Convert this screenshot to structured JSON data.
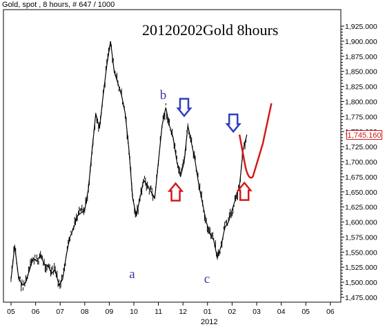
{
  "header": "Gold, spot , 8 hours, # 647 / 1000",
  "chart_title": "20120202Gold 8hours",
  "last_price_label": "1,745.160",
  "x_axis_year": "2012",
  "colors": {
    "price": "#000000",
    "annotation_blue": "#2f3fbf",
    "annotation_red": "#d41a1a",
    "wave_label": "#3a3aa8",
    "axis": "#000000"
  },
  "chart_data": {
    "type": "line",
    "title": "20120202Gold 8hours",
    "xlabel": "2012",
    "ylabel": "",
    "x_ticks": [
      "05",
      "06",
      "07",
      "08",
      "09",
      "10",
      "11",
      "12",
      "01",
      "02",
      "03",
      "04",
      "05",
      "06"
    ],
    "y_ticks": [
      "1,475.000",
      "1,500.000",
      "1,525.000",
      "1,550.000",
      "1,575.000",
      "1,600.000",
      "1,625.000",
      "1,650.000",
      "1,675.000",
      "1,700.000",
      "1,725.000",
      "1,750.000",
      "1,775.000",
      "1,800.000",
      "1,825.000",
      "1,850.000",
      "1,875.000",
      "1,900.000",
      "1,925.000"
    ],
    "ylim": [
      1475,
      1925
    ],
    "xlim": [
      0.0,
      14.0
    ],
    "series": [
      {
        "x": [
          0.0,
          0.15,
          0.3,
          0.45,
          0.6,
          0.75,
          0.9,
          1.05,
          1.2,
          1.35,
          1.5,
          1.65,
          1.8,
          1.95,
          2.1,
          2.25,
          2.4,
          2.55,
          2.7,
          2.85,
          3.0,
          3.15,
          3.3,
          3.45,
          3.6,
          3.75,
          3.9,
          4.05,
          4.2,
          4.35,
          4.5,
          4.65,
          4.8,
          4.95,
          5.1,
          5.25,
          5.4,
          5.55,
          5.7,
          5.85,
          6.0,
          6.15,
          6.3,
          6.45,
          6.6,
          6.75,
          6.9,
          7.05,
          7.2,
          7.35,
          7.5,
          7.65,
          7.8,
          7.95,
          8.1,
          8.25,
          8.4,
          8.55,
          8.7,
          8.85,
          9.0,
          9.15,
          9.3,
          9.45,
          9.6
        ],
        "values": [
          1505,
          1560,
          1510,
          1495,
          1500,
          1520,
          1540,
          1535,
          1545,
          1530,
          1528,
          1515,
          1520,
          1495,
          1505,
          1545,
          1575,
          1590,
          1610,
          1615,
          1620,
          1655,
          1720,
          1780,
          1755,
          1810,
          1860,
          1900,
          1850,
          1830,
          1810,
          1780,
          1720,
          1640,
          1610,
          1640,
          1670,
          1660,
          1650,
          1640,
          1700,
          1760,
          1790,
          1760,
          1740,
          1700,
          1675,
          1700,
          1760,
          1730,
          1700,
          1660,
          1630,
          1600,
          1580,
          1570,
          1540,
          1560,
          1590,
          1600,
          1620,
          1640,
          1660,
          1720,
          1745
        ]
      }
    ],
    "annotations": {
      "wave_labels": [
        {
          "text": "a",
          "x": 4.95,
          "y": 1512
        },
        {
          "text": "b",
          "x": 6.2,
          "y": 1808
        },
        {
          "text": "c",
          "x": 8.0,
          "y": 1503
        }
      ],
      "down_arrows_blue": [
        {
          "x": 7.05,
          "y": 1776
        },
        {
          "x": 9.05,
          "y": 1750
        }
      ],
      "up_arrows_red": [
        {
          "x": 6.7,
          "y": 1664
        },
        {
          "x": 9.5,
          "y": 1665
        }
      ],
      "projection_red": {
        "x": [
          9.3,
          9.55,
          9.85,
          10.25,
          10.6
        ],
        "values": [
          1745,
          1690,
          1676,
          1730,
          1797
        ]
      }
    }
  }
}
